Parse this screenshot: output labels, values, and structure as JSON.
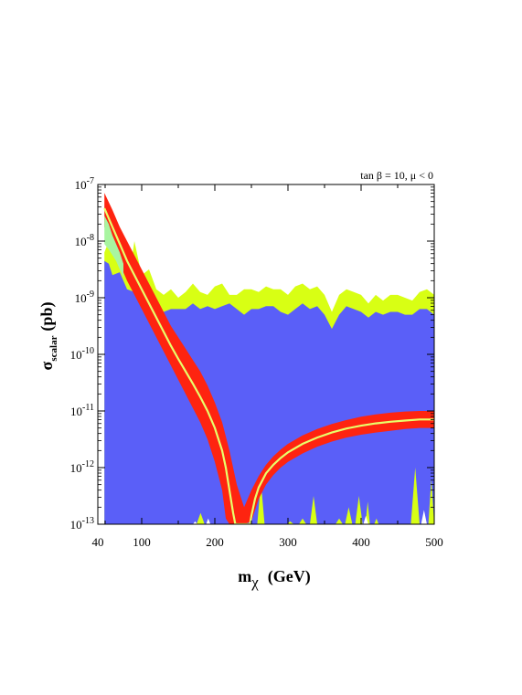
{
  "chart_data": {
    "type": "area",
    "annotation": "tan β = 10, μ < 0",
    "xlabel": {
      "main": "m",
      "sub": "χ",
      "unit": "(GeV)"
    },
    "ylabel": {
      "main": "σ",
      "sub": "scalar",
      "unit": "(pb)"
    },
    "xlim": [
      40,
      500
    ],
    "ylim_log10": [
      -13,
      -7
    ],
    "y_scale": "log",
    "x_ticks": [
      {
        "value": 40,
        "label": "40"
      },
      {
        "value": 100,
        "label": "100"
      },
      {
        "value": 200,
        "label": "200"
      },
      {
        "value": 300,
        "label": "300"
      },
      {
        "value": 400,
        "label": "400"
      },
      {
        "value": 500,
        "label": "500"
      }
    ],
    "y_ticks": [
      {
        "exp": -13,
        "base": "10",
        "sup": "-13"
      },
      {
        "exp": -12,
        "base": "10",
        "sup": "-12"
      },
      {
        "exp": -11,
        "base": "10",
        "sup": "-11"
      },
      {
        "exp": -10,
        "base": "10",
        "sup": "-10"
      },
      {
        "exp": -9,
        "base": "10",
        "sup": "-9"
      },
      {
        "exp": -8,
        "base": "10",
        "sup": "-8"
      },
      {
        "exp": -7,
        "base": "10",
        "sup": "-7"
      }
    ],
    "colors": {
      "blue_region": "#5a5ff8",
      "yellow_band": "#d8ff14",
      "green_band": "#a8f5a0",
      "red_band": "#fe2410",
      "yellow_line": "#e8ff6a"
    },
    "series": [
      {
        "kind": "blue_region_upper",
        "points": [
          [
            49,
            -8.35
          ],
          [
            55,
            -8.4
          ],
          [
            60,
            -8.6
          ],
          [
            70,
            -8.55
          ],
          [
            80,
            -8.85
          ],
          [
            90,
            -8.9
          ],
          [
            100,
            -9.0
          ],
          [
            110,
            -8.95
          ],
          [
            120,
            -9.2
          ],
          [
            130,
            -9.25
          ],
          [
            140,
            -9.2
          ],
          [
            150,
            -9.2
          ],
          [
            160,
            -9.2
          ],
          [
            170,
            -9.1
          ],
          [
            180,
            -9.2
          ],
          [
            190,
            -9.15
          ],
          [
            200,
            -9.2
          ],
          [
            210,
            -9.15
          ],
          [
            220,
            -9.1
          ],
          [
            230,
            -9.2
          ],
          [
            240,
            -9.3
          ],
          [
            250,
            -9.2
          ],
          [
            260,
            -9.2
          ],
          [
            270,
            -9.15
          ],
          [
            280,
            -9.15
          ],
          [
            290,
            -9.25
          ],
          [
            300,
            -9.3
          ],
          [
            310,
            -9.2
          ],
          [
            320,
            -9.1
          ],
          [
            330,
            -9.2
          ],
          [
            340,
            -9.15
          ],
          [
            350,
            -9.3
          ],
          [
            360,
            -9.55
          ],
          [
            370,
            -9.3
          ],
          [
            380,
            -9.15
          ],
          [
            390,
            -9.2
          ],
          [
            400,
            -9.25
          ],
          [
            410,
            -9.35
          ],
          [
            420,
            -9.25
          ],
          [
            430,
            -9.3
          ],
          [
            440,
            -9.25
          ],
          [
            450,
            -9.25
          ],
          [
            460,
            -9.3
          ],
          [
            470,
            -9.3
          ],
          [
            480,
            -9.2
          ],
          [
            490,
            -9.2
          ],
          [
            500,
            -9.3
          ]
        ]
      },
      {
        "kind": "yellow_band_upper",
        "points": [
          [
            49,
            -8.2
          ],
          [
            55,
            -8.0
          ],
          [
            60,
            -7.8
          ],
          [
            65,
            -7.9
          ],
          [
            70,
            -7.85
          ],
          [
            75,
            -8.15
          ],
          [
            80,
            -8.3
          ],
          [
            85,
            -8.45
          ],
          [
            90,
            -8.0
          ],
          [
            95,
            -8.3
          ],
          [
            100,
            -8.6
          ],
          [
            110,
            -8.5
          ],
          [
            120,
            -8.85
          ],
          [
            130,
            -8.95
          ],
          [
            140,
            -8.85
          ],
          [
            150,
            -9.0
          ],
          [
            160,
            -8.9
          ],
          [
            170,
            -8.75
          ],
          [
            180,
            -8.9
          ],
          [
            190,
            -8.95
          ],
          [
            200,
            -8.8
          ],
          [
            210,
            -8.75
          ],
          [
            220,
            -8.95
          ],
          [
            230,
            -8.95
          ],
          [
            240,
            -8.85
          ],
          [
            250,
            -8.85
          ],
          [
            260,
            -8.9
          ],
          [
            270,
            -8.8
          ],
          [
            280,
            -8.85
          ],
          [
            290,
            -8.85
          ],
          [
            300,
            -8.95
          ],
          [
            310,
            -8.8
          ],
          [
            320,
            -8.75
          ],
          [
            330,
            -8.85
          ],
          [
            340,
            -8.8
          ],
          [
            350,
            -8.95
          ],
          [
            360,
            -9.25
          ],
          [
            370,
            -8.95
          ],
          [
            380,
            -8.85
          ],
          [
            390,
            -8.9
          ],
          [
            400,
            -8.95
          ],
          [
            410,
            -9.1
          ],
          [
            420,
            -8.95
          ],
          [
            430,
            -9.05
          ],
          [
            440,
            -8.95
          ],
          [
            450,
            -8.95
          ],
          [
            460,
            -9.0
          ],
          [
            470,
            -9.05
          ],
          [
            480,
            -8.9
          ],
          [
            490,
            -8.85
          ],
          [
            500,
            -8.95
          ]
        ]
      },
      {
        "kind": "red_band_upper",
        "points": [
          [
            49,
            -7.15
          ],
          [
            60,
            -7.45
          ],
          [
            70,
            -7.75
          ],
          [
            80,
            -8.0
          ],
          [
            90,
            -8.25
          ],
          [
            100,
            -8.5
          ],
          [
            110,
            -8.75
          ],
          [
            120,
            -9.0
          ],
          [
            130,
            -9.25
          ],
          [
            140,
            -9.5
          ],
          [
            150,
            -9.7
          ],
          [
            160,
            -9.9
          ],
          [
            170,
            -10.1
          ],
          [
            180,
            -10.3
          ],
          [
            190,
            -10.55
          ],
          [
            200,
            -10.85
          ],
          [
            210,
            -11.2
          ],
          [
            220,
            -11.7
          ],
          [
            230,
            -12.3
          ],
          [
            240,
            -12.7
          ],
          [
            250,
            -12.4
          ],
          [
            260,
            -12.15
          ],
          [
            270,
            -11.95
          ],
          [
            280,
            -11.8
          ],
          [
            290,
            -11.68
          ],
          [
            300,
            -11.58
          ],
          [
            320,
            -11.43
          ],
          [
            340,
            -11.32
          ],
          [
            360,
            -11.23
          ],
          [
            380,
            -11.16
          ],
          [
            400,
            -11.1
          ],
          [
            420,
            -11.06
          ],
          [
            440,
            -11.03
          ],
          [
            460,
            -11.01
          ],
          [
            480,
            -11.0
          ],
          [
            500,
            -11.0
          ]
        ]
      },
      {
        "kind": "red_band_lower",
        "points": [
          [
            49,
            -7.75
          ],
          [
            60,
            -8.1
          ],
          [
            70,
            -8.4
          ],
          [
            80,
            -8.7
          ],
          [
            90,
            -8.95
          ],
          [
            100,
            -9.2
          ],
          [
            110,
            -9.45
          ],
          [
            120,
            -9.7
          ],
          [
            130,
            -9.95
          ],
          [
            140,
            -10.2
          ],
          [
            150,
            -10.45
          ],
          [
            160,
            -10.7
          ],
          [
            170,
            -10.95
          ],
          [
            180,
            -11.2
          ],
          [
            190,
            -11.5
          ],
          [
            200,
            -11.9
          ],
          [
            210,
            -12.4
          ],
          [
            215,
            -12.9
          ],
          [
            220,
            -13.0
          ],
          [
            238,
            -13.0
          ],
          [
            240,
            -13.0
          ],
          [
            250,
            -12.95
          ],
          [
            255,
            -12.75
          ],
          [
            260,
            -12.55
          ],
          [
            270,
            -12.3
          ],
          [
            280,
            -12.13
          ],
          [
            290,
            -12.0
          ],
          [
            300,
            -11.9
          ],
          [
            320,
            -11.75
          ],
          [
            340,
            -11.63
          ],
          [
            360,
            -11.54
          ],
          [
            380,
            -11.47
          ],
          [
            400,
            -11.42
          ],
          [
            420,
            -11.38
          ],
          [
            440,
            -11.35
          ],
          [
            460,
            -11.32
          ],
          [
            480,
            -11.3
          ],
          [
            500,
            -11.3
          ]
        ]
      },
      {
        "kind": "green_band_upper",
        "points": [
          [
            49,
            -7.55
          ],
          [
            55,
            -7.7
          ],
          [
            60,
            -7.9
          ],
          [
            65,
            -8.05
          ],
          [
            70,
            -8.2
          ],
          [
            75,
            -8.4
          ]
        ]
      },
      {
        "kind": "green_band_lower",
        "points": [
          [
            49,
            -8.05
          ],
          [
            55,
            -8.15
          ],
          [
            60,
            -8.25
          ],
          [
            65,
            -8.35
          ],
          [
            70,
            -8.5
          ],
          [
            75,
            -8.65
          ]
        ]
      },
      {
        "kind": "center_line",
        "points": [
          [
            49,
            -7.42
          ],
          [
            60,
            -7.75
          ],
          [
            70,
            -8.05
          ],
          [
            80,
            -8.35
          ],
          [
            90,
            -8.6
          ],
          [
            100,
            -8.85
          ],
          [
            110,
            -9.1
          ],
          [
            120,
            -9.35
          ],
          [
            130,
            -9.6
          ],
          [
            140,
            -9.85
          ],
          [
            150,
            -10.08
          ],
          [
            160,
            -10.3
          ],
          [
            170,
            -10.52
          ],
          [
            180,
            -10.75
          ],
          [
            190,
            -11.0
          ],
          [
            200,
            -11.3
          ],
          [
            210,
            -11.7
          ],
          [
            215,
            -12.0
          ],
          [
            220,
            -12.4
          ],
          [
            225,
            -12.8
          ],
          [
            228,
            -13.0
          ],
          [
            248,
            -13.0
          ],
          [
            250,
            -12.85
          ],
          [
            255,
            -12.55
          ],
          [
            260,
            -12.35
          ],
          [
            270,
            -12.1
          ],
          [
            280,
            -11.95
          ],
          [
            290,
            -11.83
          ],
          [
            300,
            -11.73
          ],
          [
            320,
            -11.58
          ],
          [
            340,
            -11.47
          ],
          [
            360,
            -11.38
          ],
          [
            380,
            -11.31
          ],
          [
            400,
            -11.26
          ],
          [
            420,
            -11.22
          ],
          [
            440,
            -11.19
          ],
          [
            460,
            -11.17
          ],
          [
            480,
            -11.15
          ],
          [
            500,
            -11.15
          ]
        ]
      },
      {
        "kind": "yellow_spikes_bottom",
        "spikes": [
          [
            175,
            186,
            -12.8
          ],
          [
            196,
            202,
            -13.0
          ],
          [
            258,
            268,
            -12.25
          ],
          [
            298,
            308,
            -12.95
          ],
          [
            315,
            325,
            -12.9
          ],
          [
            330,
            340,
            -12.5
          ],
          [
            365,
            375,
            -12.9
          ],
          [
            378,
            388,
            -12.7
          ],
          [
            392,
            402,
            -12.5
          ],
          [
            406,
            412,
            -12.6
          ],
          [
            418,
            424,
            -12.9
          ],
          [
            432,
            438,
            -13.0
          ],
          [
            468,
            480,
            -12.0
          ],
          [
            492,
            500,
            -12.2
          ]
        ]
      },
      {
        "kind": "white_gaps_bottom",
        "spikes": [
          [
            170,
            176,
            -12.95
          ],
          [
            188,
            194,
            -12.9
          ],
          [
            403,
            410,
            -12.85
          ],
          [
            482,
            490,
            -12.75
          ]
        ]
      }
    ]
  }
}
